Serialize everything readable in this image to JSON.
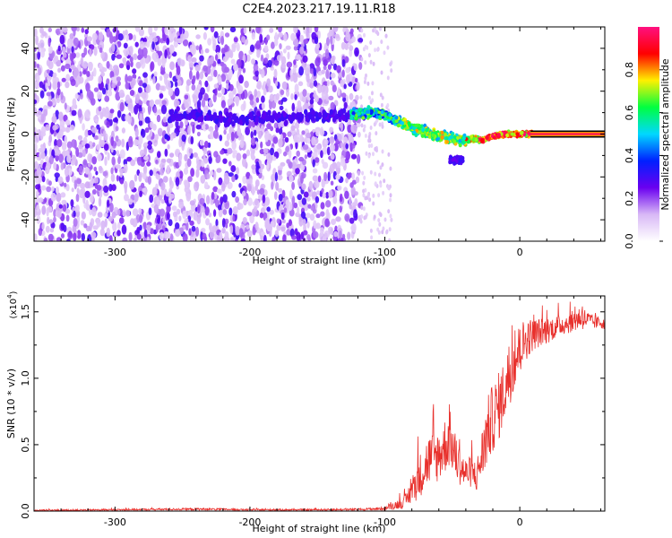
{
  "title": "C2E4.2023.217.19.11.R18",
  "colors": {
    "snr_line": "#e8302c",
    "background": "#ffffff",
    "axis": "#000000"
  },
  "chart_data": [
    {
      "type": "heatmap",
      "xlabel": "Height of straight line (km)",
      "ylabel": "Frequency (Hz)",
      "xlim": [
        -360,
        63
      ],
      "ylim": [
        -50,
        50
      ],
      "xticks": [
        -300,
        -200,
        -100,
        0
      ],
      "yticks": [
        -40,
        -20,
        0,
        20,
        40
      ],
      "colorbar": {
        "label": "Normalized spectral amplitude",
        "range": [
          0,
          1
        ],
        "ticks": [
          "0.0",
          "0.2",
          "0.4",
          "0.6",
          "0.8"
        ],
        "colormap": [
          "#ffffff",
          "#d8b8f6",
          "#6a00f0",
          "#0020ff",
          "#00d8ff",
          "#00ff40",
          "#fff000",
          "#ff0000",
          "#ff1080"
        ]
      },
      "regions": {
        "noise_x": [
          -360,
          -118
        ],
        "noise_tail_x": [
          -118,
          -95
        ],
        "trace": [
          [
            -260,
            8
          ],
          [
            -240,
            9
          ],
          [
            -215,
            7
          ],
          [
            -125,
            9
          ],
          [
            -110,
            10
          ],
          [
            -100,
            9
          ],
          [
            -90,
            6
          ],
          [
            -80,
            3
          ],
          [
            -70,
            1
          ],
          [
            -60,
            -1
          ],
          [
            -50,
            -2
          ],
          [
            -42,
            -3
          ],
          [
            -35,
            -2
          ],
          [
            -28,
            -3
          ],
          [
            -20,
            -1
          ],
          [
            -10,
            0
          ],
          [
            0,
            0
          ],
          [
            10,
            0
          ],
          [
            63,
            0
          ]
        ]
      }
    },
    {
      "type": "line",
      "xlabel": "Height of straight line (km)",
      "ylabel": "SNR (10 * v/v)",
      "y_scale_label": "(x10",
      "y_scale_exp": "4",
      "y_scale_close": ")",
      "xlim": [
        -360,
        63
      ],
      "ylim": [
        0,
        1.62
      ],
      "xticks": [
        -300,
        -200,
        -100,
        0
      ],
      "yticks": [
        0.0,
        0.5,
        1.0,
        1.5
      ],
      "envelope": {
        "x": [
          -360,
          -300,
          -240,
          -200,
          -160,
          -120,
          -100,
          -85,
          -75,
          -68,
          -60,
          -52,
          -48,
          -44,
          -40,
          -36,
          -32,
          -28,
          -24,
          -20,
          -15,
          -10,
          -5,
          0,
          5,
          10,
          20,
          30,
          40,
          45,
          50,
          55,
          63
        ],
        "y": [
          0.005,
          0.01,
          0.015,
          0.01,
          0.01,
          0.012,
          0.02,
          0.07,
          0.25,
          0.38,
          0.42,
          0.55,
          0.42,
          0.33,
          0.28,
          0.3,
          0.26,
          0.42,
          0.6,
          0.7,
          0.8,
          0.95,
          1.1,
          1.22,
          1.3,
          1.33,
          1.36,
          1.4,
          1.43,
          1.46,
          1.44,
          1.42,
          1.42
        ],
        "amp": [
          0.006,
          0.006,
          0.008,
          0.006,
          0.006,
          0.008,
          0.012,
          0.05,
          0.16,
          0.2,
          0.2,
          0.22,
          0.18,
          0.14,
          0.12,
          0.12,
          0.12,
          0.2,
          0.26,
          0.26,
          0.26,
          0.24,
          0.22,
          0.2,
          0.16,
          0.12,
          0.1,
          0.08,
          0.08,
          0.1,
          0.07,
          0.05,
          0.05
        ]
      },
      "points": 1400
    }
  ]
}
